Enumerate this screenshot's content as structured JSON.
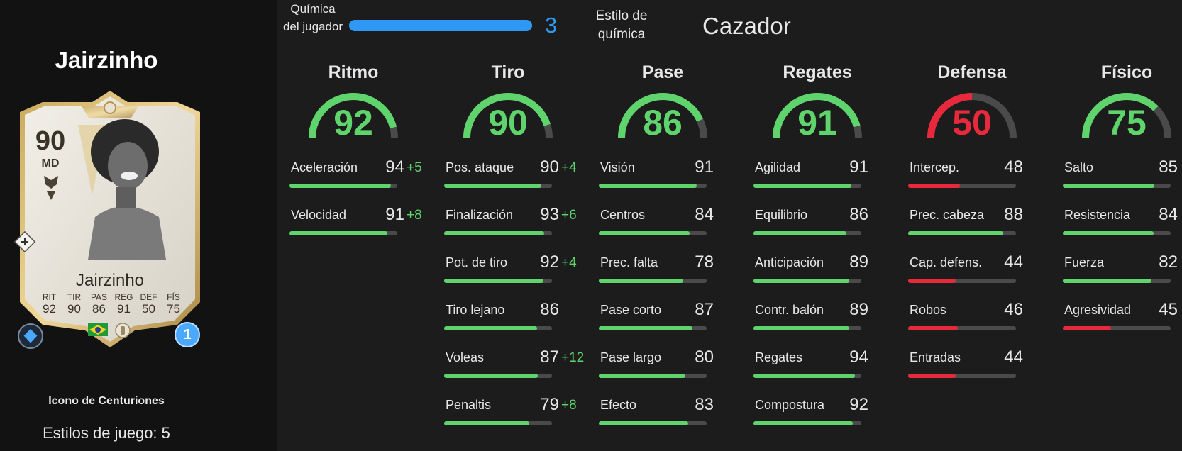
{
  "colors": {
    "green": "#5fd46d",
    "red": "#e8293c",
    "chem_blue": "#2f97f4",
    "track": "#4a4a4a"
  },
  "player": {
    "name": "Jairzinho",
    "card": {
      "rating": "90",
      "position": "MD",
      "name": "Jairzinho",
      "stats": [
        {
          "label": "RIT",
          "value": "92"
        },
        {
          "label": "TIR",
          "value": "90"
        },
        {
          "label": "PAS",
          "value": "86"
        },
        {
          "label": "REG",
          "value": "91"
        },
        {
          "label": "DEF",
          "value": "50"
        },
        {
          "label": "FÍS",
          "value": "75"
        }
      ],
      "chem_badge": "1",
      "nation_flag": "brazil-flag",
      "club_badge": "icon-badge"
    },
    "card_type": "Icono de Centuriones",
    "playstyles": "Estilos de juego: 5"
  },
  "chemistry": {
    "label": "Química del jugador",
    "value": "3",
    "fraction": 1.0,
    "style_label": "Estilo de química",
    "style_value": "Cazador"
  },
  "columns": [
    {
      "title": "Ritmo",
      "value": "92",
      "num": 92,
      "color": "green",
      "stats": [
        {
          "name": "Aceleración",
          "value": "94",
          "num": 94,
          "boost": "+5",
          "color": "green"
        },
        {
          "name": "Velocidad",
          "value": "91",
          "num": 91,
          "boost": "+8",
          "color": "green"
        }
      ]
    },
    {
      "title": "Tiro",
      "value": "90",
      "num": 90,
      "color": "green",
      "stats": [
        {
          "name": "Pos. ataque",
          "value": "90",
          "num": 90,
          "boost": "+4",
          "color": "green"
        },
        {
          "name": "Finalización",
          "value": "93",
          "num": 93,
          "boost": "+6",
          "color": "green"
        },
        {
          "name": "Pot. de tiro",
          "value": "92",
          "num": 92,
          "boost": "+4",
          "color": "green"
        },
        {
          "name": "Tiro lejano",
          "value": "86",
          "num": 86,
          "boost": "",
          "color": "green"
        },
        {
          "name": "Voleas",
          "value": "87",
          "num": 87,
          "boost": "+12",
          "color": "green"
        },
        {
          "name": "Penaltis",
          "value": "79",
          "num": 79,
          "boost": "+8",
          "color": "green"
        }
      ]
    },
    {
      "title": "Pase",
      "value": "86",
      "num": 86,
      "color": "green",
      "stats": [
        {
          "name": "Visión",
          "value": "91",
          "num": 91,
          "boost": "",
          "color": "green"
        },
        {
          "name": "Centros",
          "value": "84",
          "num": 84,
          "boost": "",
          "color": "green"
        },
        {
          "name": "Prec. falta",
          "value": "78",
          "num": 78,
          "boost": "",
          "color": "green"
        },
        {
          "name": "Pase corto",
          "value": "87",
          "num": 87,
          "boost": "",
          "color": "green"
        },
        {
          "name": "Pase largo",
          "value": "80",
          "num": 80,
          "boost": "",
          "color": "green"
        },
        {
          "name": "Efecto",
          "value": "83",
          "num": 83,
          "boost": "",
          "color": "green"
        }
      ]
    },
    {
      "title": "Regates",
      "value": "91",
      "num": 91,
      "color": "green",
      "stats": [
        {
          "name": "Agilidad",
          "value": "91",
          "num": 91,
          "boost": "",
          "color": "green"
        },
        {
          "name": "Equilibrio",
          "value": "86",
          "num": 86,
          "boost": "",
          "color": "green"
        },
        {
          "name": "Anticipación",
          "value": "89",
          "num": 89,
          "boost": "",
          "color": "green"
        },
        {
          "name": "Contr. balón",
          "value": "89",
          "num": 89,
          "boost": "",
          "color": "green"
        },
        {
          "name": "Regates",
          "value": "94",
          "num": 94,
          "boost": "",
          "color": "green"
        },
        {
          "name": "Compostura",
          "value": "92",
          "num": 92,
          "boost": "",
          "color": "green"
        }
      ]
    },
    {
      "title": "Defensa",
      "value": "50",
      "num": 50,
      "color": "red",
      "stats": [
        {
          "name": "Intercep.",
          "value": "48",
          "num": 48,
          "boost": "",
          "color": "red"
        },
        {
          "name": "Prec. cabeza",
          "value": "88",
          "num": 88,
          "boost": "",
          "color": "green"
        },
        {
          "name": "Cap. defens.",
          "value": "44",
          "num": 44,
          "boost": "",
          "color": "red"
        },
        {
          "name": "Robos",
          "value": "46",
          "num": 46,
          "boost": "",
          "color": "red"
        },
        {
          "name": "Entradas",
          "value": "44",
          "num": 44,
          "boost": "",
          "color": "red"
        }
      ]
    },
    {
      "title": "Físico",
      "value": "75",
      "num": 75,
      "color": "green",
      "stats": [
        {
          "name": "Salto",
          "value": "85",
          "num": 85,
          "boost": "",
          "color": "green"
        },
        {
          "name": "Resistencia",
          "value": "84",
          "num": 84,
          "boost": "",
          "color": "green"
        },
        {
          "name": "Fuerza",
          "value": "82",
          "num": 82,
          "boost": "",
          "color": "green"
        },
        {
          "name": "Agresividad",
          "value": "45",
          "num": 45,
          "boost": "",
          "color": "red"
        }
      ]
    }
  ]
}
